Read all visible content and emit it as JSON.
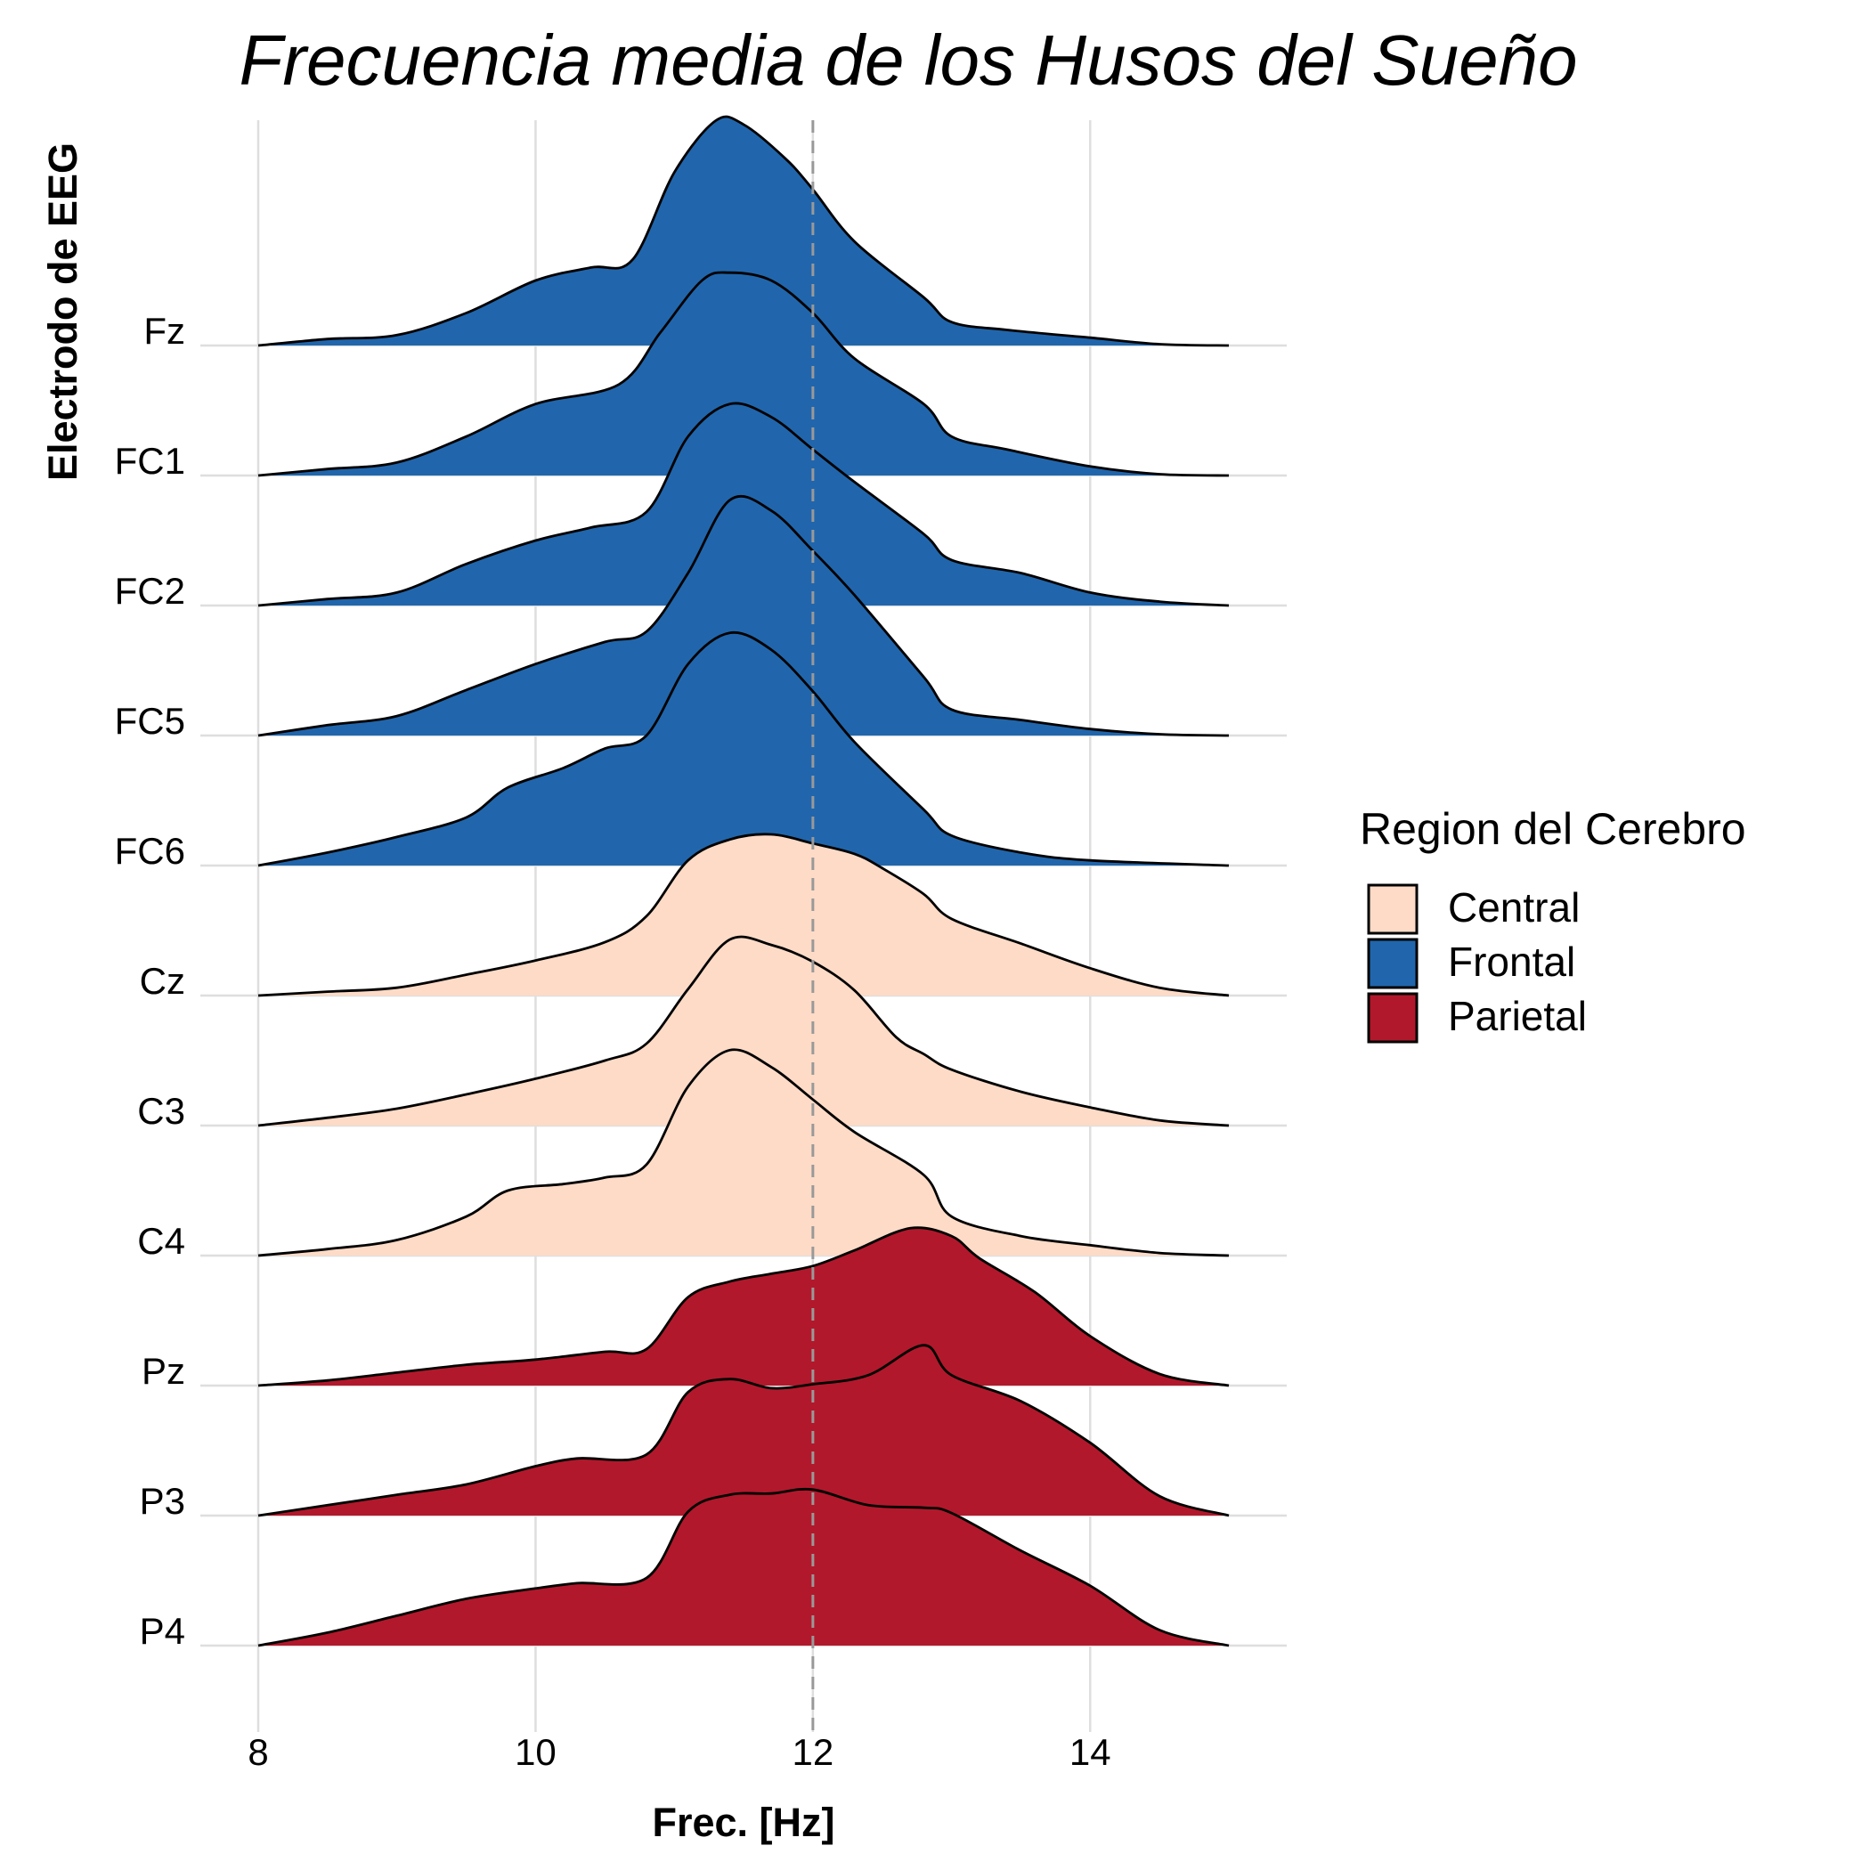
{
  "chart_data": {
    "type": "ridgeline",
    "title": "Frecuencia media de los Husos del Sueño",
    "xlabel": "Frec. [Hz]",
    "ylabel": "Electrodo de EEG",
    "xlim": [
      8,
      15
    ],
    "xticks": [
      8,
      10,
      12,
      14
    ],
    "reference_line": {
      "x": 12,
      "style": "dashed",
      "color": "#999999"
    },
    "grid": true,
    "legend": {
      "title": "Region del Cerebro",
      "placement": "right",
      "entries": [
        {
          "label": "Central",
          "color": "#FDDBC7"
        },
        {
          "label": "Frontal",
          "color": "#2166AC"
        },
        {
          "label": "Parietal",
          "color": "#B2182B"
        }
      ]
    },
    "series": [
      {
        "name": "Fz",
        "region": "Frontal",
        "x": [
          8.0,
          8.5,
          9.0,
          9.5,
          10.0,
          10.4,
          10.7,
          11.0,
          11.3,
          11.5,
          11.8,
          12.0,
          12.3,
          12.8,
          13.0,
          13.4,
          14.0,
          14.5,
          15.0
        ],
        "density": [
          0.0,
          0.05,
          0.08,
          0.25,
          0.5,
          0.6,
          0.66,
          1.33,
          1.73,
          1.7,
          1.44,
          1.2,
          0.8,
          0.37,
          0.18,
          0.12,
          0.06,
          0.01,
          0.0
        ]
      },
      {
        "name": "FC1",
        "region": "Frontal",
        "x": [
          8.0,
          8.5,
          9.0,
          9.5,
          10.0,
          10.6,
          10.9,
          11.2,
          11.4,
          11.7,
          12.0,
          12.3,
          12.8,
          13.0,
          13.4,
          14.0,
          14.5,
          15.0
        ],
        "density": [
          0.0,
          0.05,
          0.1,
          0.3,
          0.55,
          0.7,
          1.1,
          1.5,
          1.56,
          1.5,
          1.25,
          0.9,
          0.55,
          0.3,
          0.2,
          0.07,
          0.01,
          0.0
        ]
      },
      {
        "name": "FC2",
        "region": "Frontal",
        "x": [
          8.0,
          8.5,
          9.0,
          9.5,
          10.0,
          10.4,
          10.8,
          11.1,
          11.4,
          11.7,
          12.0,
          12.3,
          12.8,
          13.0,
          13.5,
          14.0,
          14.5,
          15.0
        ],
        "density": [
          0.0,
          0.05,
          0.1,
          0.32,
          0.5,
          0.6,
          0.72,
          1.3,
          1.55,
          1.45,
          1.2,
          0.95,
          0.55,
          0.35,
          0.25,
          0.1,
          0.03,
          0.0
        ]
      },
      {
        "name": "FC5",
        "region": "Frontal",
        "x": [
          8.0,
          8.5,
          9.0,
          9.5,
          10.0,
          10.5,
          10.8,
          11.1,
          11.4,
          11.7,
          12.0,
          12.3,
          12.8,
          13.0,
          13.5,
          14.0,
          14.5,
          15.0
        ],
        "density": [
          0.0,
          0.08,
          0.15,
          0.35,
          0.55,
          0.72,
          0.8,
          1.25,
          1.81,
          1.73,
          1.42,
          1.08,
          0.45,
          0.2,
          0.12,
          0.05,
          0.01,
          0.0
        ]
      },
      {
        "name": "FC6",
        "region": "Frontal",
        "x": [
          8.0,
          8.5,
          9.0,
          9.5,
          9.8,
          10.2,
          10.5,
          10.8,
          11.1,
          11.4,
          11.7,
          12.0,
          12.3,
          12.8,
          13.0,
          13.5,
          14.0,
          15.0
        ],
        "density": [
          0.0,
          0.1,
          0.22,
          0.37,
          0.6,
          0.75,
          0.9,
          1.0,
          1.55,
          1.79,
          1.66,
          1.34,
          0.95,
          0.43,
          0.23,
          0.1,
          0.04,
          0.0
        ]
      },
      {
        "name": "Cz",
        "region": "Central",
        "x": [
          8.0,
          8.5,
          9.0,
          9.5,
          10.0,
          10.5,
          10.8,
          11.1,
          11.4,
          11.7,
          12.0,
          12.3,
          12.5,
          12.8,
          13.0,
          13.5,
          14.0,
          14.5,
          15.0
        ],
        "density": [
          0.0,
          0.03,
          0.06,
          0.16,
          0.27,
          0.41,
          0.61,
          1.04,
          1.2,
          1.24,
          1.17,
          1.09,
          0.98,
          0.78,
          0.59,
          0.4,
          0.21,
          0.06,
          0.0
        ]
      },
      {
        "name": "C3",
        "region": "Central",
        "x": [
          8.0,
          8.5,
          9.0,
          9.5,
          10.0,
          10.5,
          10.8,
          11.1,
          11.4,
          11.7,
          12.0,
          12.3,
          12.6,
          12.8,
          13.0,
          13.5,
          14.0,
          14.5,
          15.0
        ],
        "density": [
          0.0,
          0.06,
          0.13,
          0.24,
          0.36,
          0.5,
          0.63,
          1.05,
          1.43,
          1.39,
          1.26,
          1.04,
          0.68,
          0.55,
          0.43,
          0.26,
          0.14,
          0.04,
          0.0
        ]
      },
      {
        "name": "C4",
        "region": "Central",
        "x": [
          8.0,
          8.5,
          9.0,
          9.5,
          9.8,
          10.2,
          10.5,
          10.8,
          11.1,
          11.4,
          11.7,
          12.0,
          12.3,
          12.8,
          13.0,
          13.5,
          14.0,
          14.5,
          15.0
        ],
        "density": [
          0.0,
          0.05,
          0.12,
          0.3,
          0.5,
          0.55,
          0.6,
          0.7,
          1.3,
          1.58,
          1.45,
          1.2,
          0.95,
          0.62,
          0.3,
          0.15,
          0.08,
          0.02,
          0.0
        ]
      },
      {
        "name": "Pz",
        "region": "Parietal",
        "x": [
          8.0,
          8.5,
          9.0,
          9.5,
          10.0,
          10.5,
          10.8,
          11.1,
          11.4,
          11.7,
          12.0,
          12.3,
          12.7,
          13.0,
          13.2,
          13.6,
          14.0,
          14.5,
          15.0
        ],
        "density": [
          0.0,
          0.04,
          0.1,
          0.16,
          0.2,
          0.26,
          0.28,
          0.68,
          0.8,
          0.86,
          0.92,
          1.04,
          1.21,
          1.15,
          0.98,
          0.72,
          0.38,
          0.09,
          0.0
        ]
      },
      {
        "name": "P3",
        "region": "Parietal",
        "x": [
          8.0,
          8.5,
          9.0,
          9.5,
          10.0,
          10.3,
          10.8,
          11.1,
          11.4,
          11.7,
          12.0,
          12.4,
          12.8,
          13.0,
          13.5,
          14.0,
          14.5,
          15.0
        ],
        "density": [
          0.0,
          0.08,
          0.16,
          0.24,
          0.38,
          0.44,
          0.47,
          0.95,
          1.05,
          0.98,
          1.01,
          1.08,
          1.31,
          1.08,
          0.88,
          0.56,
          0.15,
          0.0
        ]
      },
      {
        "name": "P4",
        "region": "Parietal",
        "x": [
          8.0,
          8.5,
          9.0,
          9.5,
          10.0,
          10.3,
          10.8,
          11.1,
          11.4,
          11.7,
          12.0,
          12.4,
          12.8,
          13.0,
          13.5,
          14.0,
          14.5,
          15.0
        ],
        "density": [
          0.0,
          0.1,
          0.23,
          0.36,
          0.44,
          0.48,
          0.52,
          1.03,
          1.16,
          1.17,
          1.2,
          1.08,
          1.06,
          1.02,
          0.73,
          0.46,
          0.12,
          0.0
        ]
      }
    ]
  }
}
